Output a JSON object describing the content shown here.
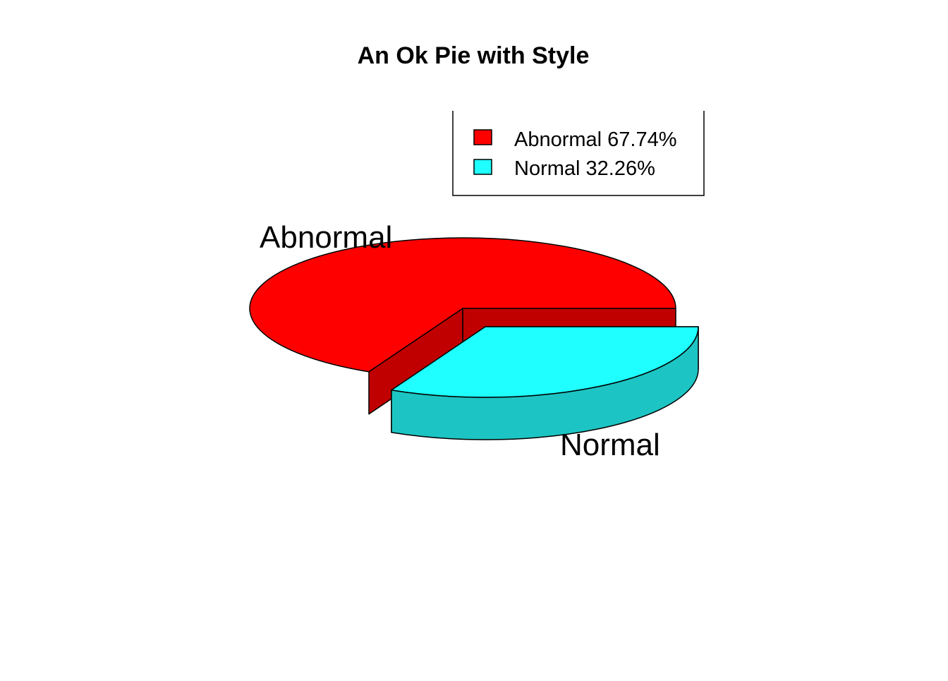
{
  "chart_data": {
    "type": "pie",
    "title": "An Ok Pie with Style",
    "three_d": true,
    "exploded_slice": "Normal",
    "slices": [
      {
        "label": "Abnormal",
        "percent": 67.74,
        "color": "#FF0000",
        "side_color": "#C00000",
        "legend": "Abnormal 67.74%"
      },
      {
        "label": "Normal",
        "percent": 32.26,
        "color": "#1FFFFF",
        "side_color": "#1CC5C3",
        "legend": "Normal 32.26%"
      }
    ],
    "legend_position": "top-right",
    "grid": false
  }
}
